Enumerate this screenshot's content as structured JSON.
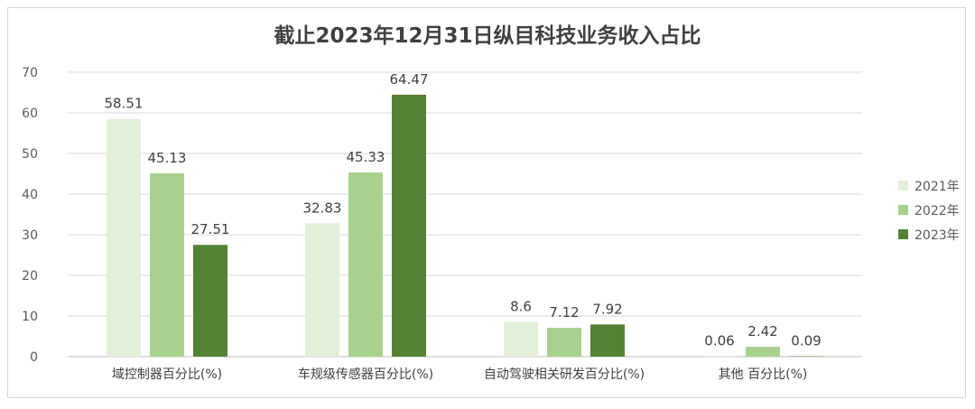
{
  "chart_data": {
    "type": "bar",
    "title": "截止2023年12月31日纵目科技业务收入占比",
    "xlabel": "",
    "ylabel": "",
    "categories": [
      "域控制器百分比(%)",
      "车规级传感器百分比(%)",
      "自动驾驶相关研发百分比(%)",
      "其他 百分比(%)"
    ],
    "series": [
      {
        "name": "2021年",
        "values": [
          58.51,
          32.83,
          8.6,
          0.06
        ],
        "labels": [
          "58.51",
          "32.83",
          "8.6",
          "0.06"
        ],
        "color": "#e2f0d9"
      },
      {
        "name": "2022年",
        "values": [
          45.13,
          45.33,
          7.12,
          2.42
        ],
        "labels": [
          "45.13",
          "45.33",
          "7.12",
          "2.42"
        ],
        "color": "#a9d18e"
      },
      {
        "name": "2023年",
        "values": [
          27.51,
          64.47,
          7.92,
          0.09
        ],
        "labels": [
          "27.51",
          "64.47",
          "7.92",
          "0.09"
        ],
        "color": "#548235"
      }
    ],
    "ylim": [
      0,
      70
    ],
    "yticks": [
      0,
      10,
      20,
      30,
      40,
      50,
      60,
      70
    ],
    "grid": true,
    "legend_position": "right"
  },
  "colors": {
    "gridline": "#d9d9d9",
    "axis": "#bfbfbf"
  }
}
